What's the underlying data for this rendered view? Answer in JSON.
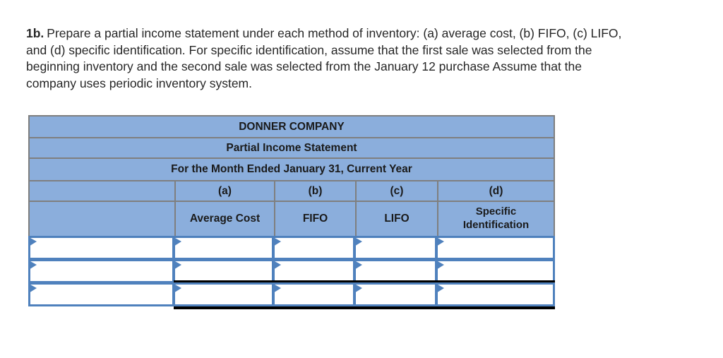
{
  "problem": {
    "number": "1b.",
    "lines": [
      "Prepare a partial income statement under each method of inventory: (a) average cost, (b) FIFO, (c) LIFO,",
      "and (d) specific identification. For specific identification, assume that the first sale was selected from the",
      "beginning inventory and the second sale was selected from the January 12 purchase Assume that the",
      "company uses periodic inventory system."
    ]
  },
  "statement_table": {
    "company_name": "DONNER COMPANY",
    "statement_title": "Partial Income Statement",
    "period": "For the Month Ended January 31, Current Year",
    "row_label_column": "",
    "columns": [
      {
        "letter": "(a)",
        "method": "Average Cost"
      },
      {
        "letter": "(b)",
        "method": "FIFO"
      },
      {
        "letter": "(c)",
        "method": "LIFO"
      },
      {
        "letter": "(d)",
        "method": "Specific Identification"
      }
    ],
    "input_row_count": 3,
    "input_columns_per_row": 5,
    "colors": {
      "header_fill": "#8BAEDC",
      "header_border": "#7F7F7F",
      "input_border": "#4F81BD",
      "accounting_rule": "#000000"
    }
  }
}
